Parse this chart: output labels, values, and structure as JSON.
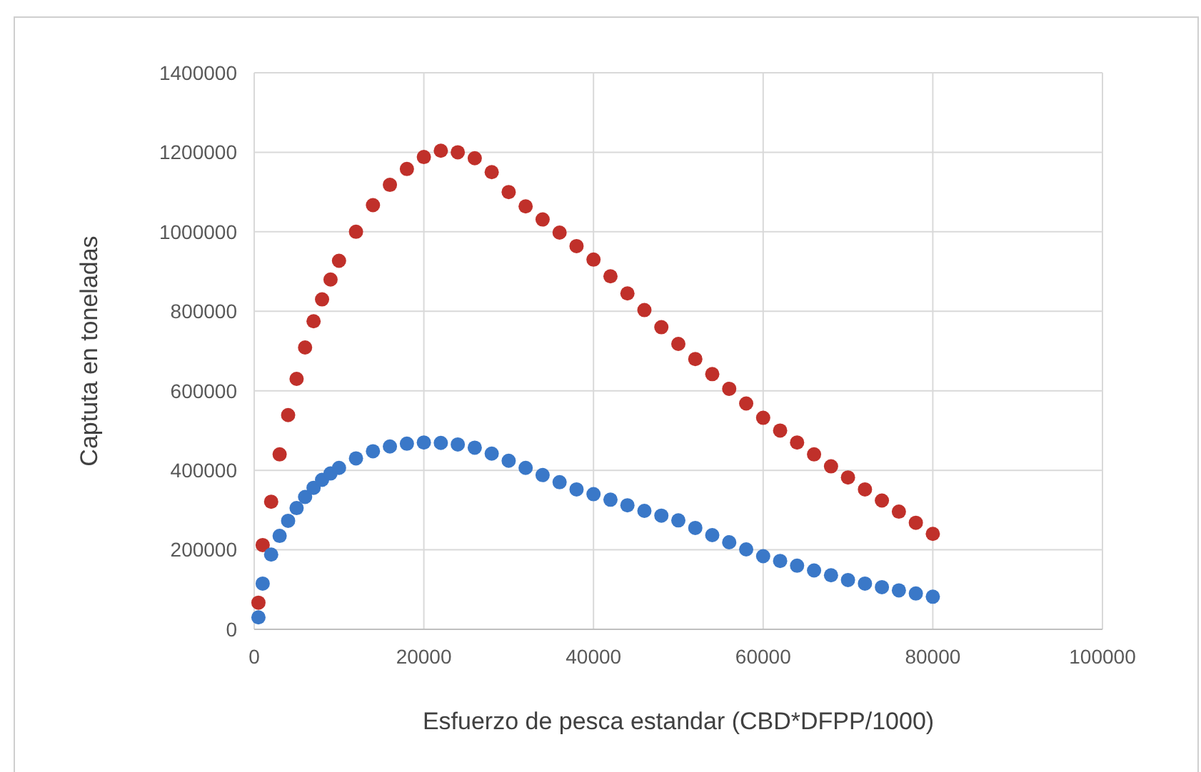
{
  "chart_data": {
    "type": "scatter",
    "xlabel": "Esfuerzo de pesca estandar (CBD*DFPP/1000)",
    "ylabel": "Captuta en toneladas",
    "xlim": [
      0,
      100000
    ],
    "xticks": [
      0,
      20000,
      40000,
      60000,
      80000,
      100000
    ],
    "ylim": [
      0,
      1400000
    ],
    "yticks": [
      0,
      200000,
      400000,
      600000,
      800000,
      1000000,
      1200000,
      1400000
    ],
    "grid": true,
    "marker": "circle",
    "x": [
      500,
      1000,
      2000,
      3000,
      4000,
      5000,
      6000,
      7000,
      8000,
      9000,
      10000,
      12000,
      14000,
      16000,
      18000,
      20000,
      22000,
      24000,
      26000,
      28000,
      30000,
      32000,
      34000,
      36000,
      38000,
      40000,
      42000,
      44000,
      46000,
      48000,
      50000,
      52000,
      54000,
      56000,
      58000,
      60000,
      62000,
      64000,
      66000,
      68000,
      70000,
      72000,
      74000,
      76000,
      78000,
      80000
    ],
    "series": [
      {
        "color": "#c0302a",
        "values": [
          67000,
          212000,
          321000,
          440000,
          539000,
          630000,
          709000,
          775000,
          830000,
          880000,
          927000,
          1000000,
          1067000,
          1118000,
          1158000,
          1188000,
          1204000,
          1200000,
          1185000,
          1150000,
          1100000,
          1064000,
          1031000,
          998000,
          964000,
          930000,
          888000,
          845000,
          803000,
          760000,
          718000,
          680000,
          642000,
          605000,
          568000,
          532000,
          500000,
          470000,
          440000,
          410000,
          382000,
          352000,
          324000,
          296000,
          268000,
          240000
        ]
      },
      {
        "color": "#3a78c8",
        "values": [
          30000,
          115000,
          188000,
          235000,
          273000,
          305000,
          333000,
          356000,
          376000,
          392000,
          406000,
          430000,
          448000,
          460000,
          467000,
          470000,
          469000,
          465000,
          457000,
          442000,
          424000,
          406000,
          388000,
          370000,
          352000,
          340000,
          326000,
          312000,
          298000,
          286000,
          274000,
          255000,
          237000,
          219000,
          201000,
          184000,
          172000,
          160000,
          148000,
          136000,
          124000,
          115000,
          106000,
          98000,
          90000,
          82000
        ]
      }
    ]
  }
}
